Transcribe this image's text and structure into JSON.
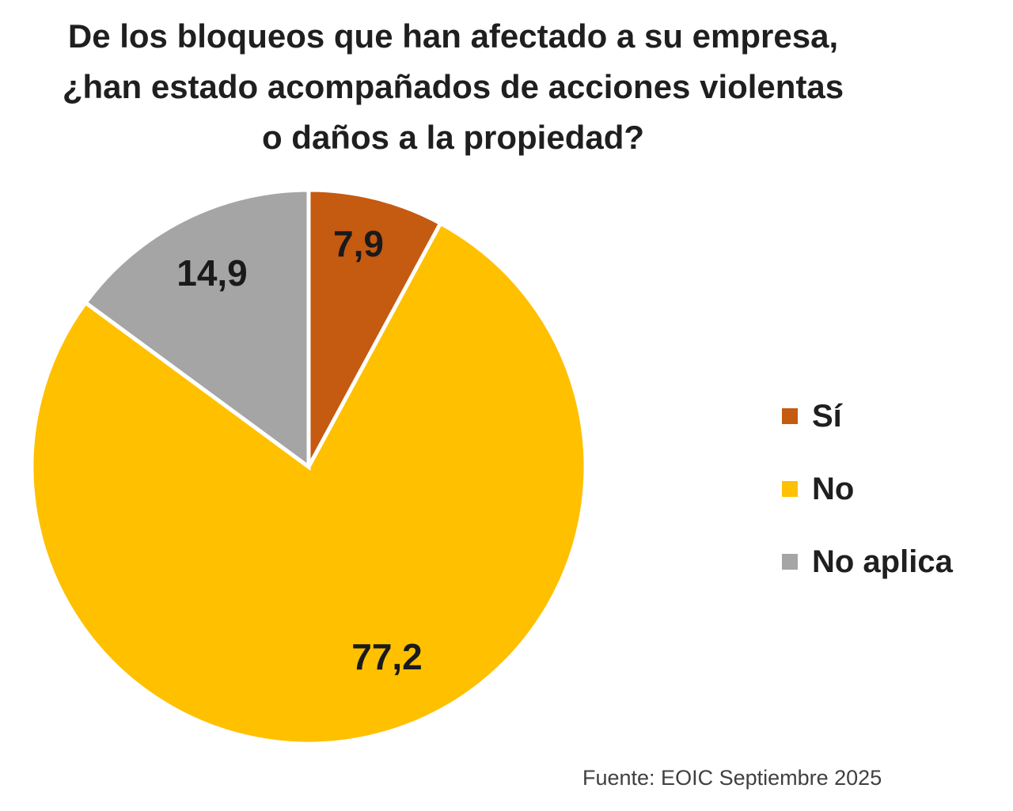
{
  "chart_data": {
    "type": "pie",
    "title_lines": [
      "De los bloqueos que han afectado a su empresa,",
      "¿han estado acompañados de acciones violentas",
      "o daños a la propiedad?"
    ],
    "slices": [
      {
        "name": "Sí",
        "value": 7.9,
        "label": "7,9",
        "color": "#C55A11"
      },
      {
        "name": "No",
        "value": 77.2,
        "label": "77,2",
        "color": "#FFC000"
      },
      {
        "name": "No aplica",
        "value": 14.9,
        "label": "14,9",
        "color": "#A5A5A5"
      }
    ],
    "start": "12 o'clock",
    "direction": "clockwise",
    "legend_position": "right",
    "source": "Fuente: EOIC Septiembre 2025"
  }
}
